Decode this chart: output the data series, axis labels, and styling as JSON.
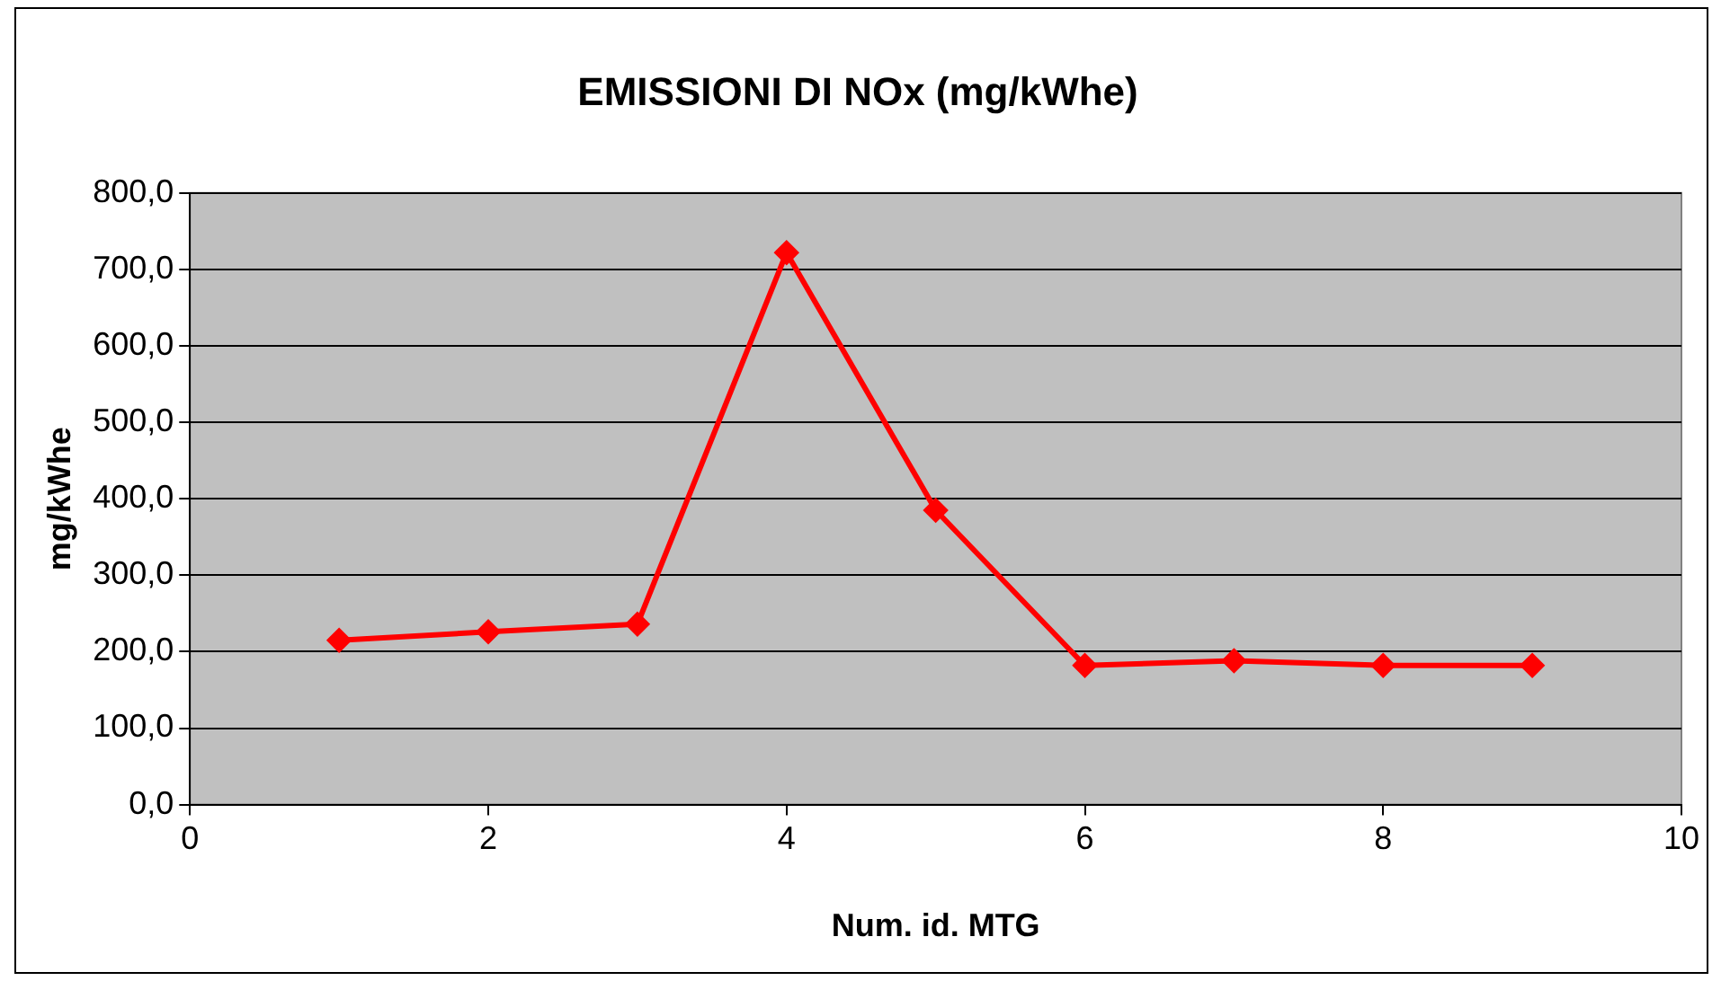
{
  "chart_data": {
    "type": "line",
    "title": "EMISSIONI DI NOx (mg/kWhe)",
    "xlabel": "Num. id. MTG",
    "ylabel": "mg/kWhe",
    "x": [
      1,
      2,
      3,
      4,
      5,
      6,
      7,
      8,
      9
    ],
    "series": [
      {
        "color": "#ff0000",
        "values": [
          215,
          226,
          236,
          722,
          385,
          182,
          188,
          182,
          182
        ]
      }
    ],
    "xlim": [
      0,
      10
    ],
    "xticks": [
      0,
      2,
      4,
      6,
      8,
      10
    ],
    "ylim": [
      0,
      800
    ],
    "yticks": [
      {
        "value": 0,
        "label": "0,0"
      },
      {
        "value": 100,
        "label": "100,0"
      },
      {
        "value": 200,
        "label": "200,0"
      },
      {
        "value": 300,
        "label": "300,0"
      },
      {
        "value": 400,
        "label": "400,0"
      },
      {
        "value": 500,
        "label": "500,0"
      },
      {
        "value": 600,
        "label": "600,0"
      },
      {
        "value": 700,
        "label": "700,0"
      },
      {
        "value": 800,
        "label": "800,0"
      }
    ],
    "grid": "y",
    "legend": false,
    "marker": "diamond",
    "line_style": "solid"
  }
}
